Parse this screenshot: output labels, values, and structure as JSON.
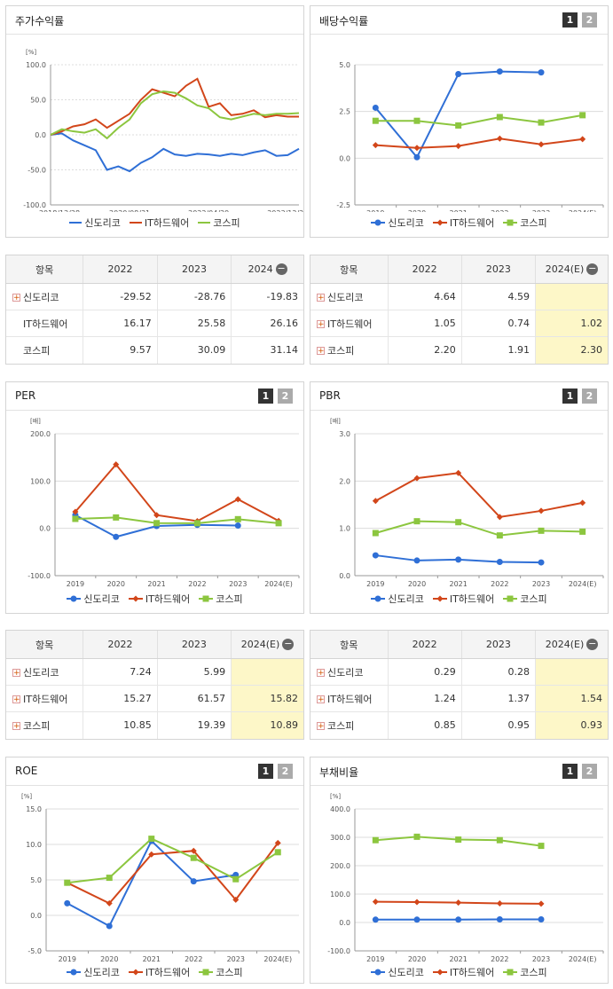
{
  "legend": [
    "신도리코",
    "IT하드웨어",
    "코스피"
  ],
  "colors": {
    "s1": "#2f6fd6",
    "s2": "#d2461a",
    "s3": "#8cc63f"
  },
  "panels": {
    "stock": {
      "title": "주가수익률",
      "unit": "[%]"
    },
    "div": {
      "title": "배당수익률",
      "unit": "",
      "pages": [
        "1",
        "2"
      ]
    },
    "per": {
      "title": "PER",
      "unit": "[배]",
      "pages": [
        "1",
        "2"
      ]
    },
    "pbr": {
      "title": "PBR",
      "unit": "[배]",
      "pages": [
        "1",
        "2"
      ]
    },
    "roe": {
      "title": "ROE",
      "unit": "[%]",
      "pages": [
        "1",
        "2"
      ]
    },
    "debt": {
      "title": "부채비율",
      "unit": "[%]",
      "pages": [
        "1",
        "2"
      ]
    }
  },
  "tables": {
    "stock": {
      "head": [
        "항목",
        "2022",
        "2023",
        "2024"
      ],
      "rows": [
        [
          "신도리코",
          "-29.52",
          "-28.76",
          "-19.83"
        ],
        [
          "IT하드웨어",
          "16.17",
          "25.58",
          "26.16"
        ],
        [
          "코스피",
          "9.57",
          "30.09",
          "31.14"
        ]
      ]
    },
    "div": {
      "head": [
        "항목",
        "2022",
        "2023",
        "2024(E)"
      ],
      "rows": [
        [
          "신도리코",
          "4.64",
          "4.59",
          ""
        ],
        [
          "IT하드웨어",
          "1.05",
          "0.74",
          "1.02"
        ],
        [
          "코스피",
          "2.20",
          "1.91",
          "2.30"
        ]
      ]
    },
    "per": {
      "head": [
        "항목",
        "2022",
        "2023",
        "2024(E)"
      ],
      "rows": [
        [
          "신도리코",
          "7.24",
          "5.99",
          ""
        ],
        [
          "IT하드웨어",
          "15.27",
          "61.57",
          "15.82"
        ],
        [
          "코스피",
          "10.85",
          "19.39",
          "10.89"
        ]
      ]
    },
    "pbr": {
      "head": [
        "항목",
        "2022",
        "2023",
        "2024(E)"
      ],
      "rows": [
        [
          "신도리코",
          "0.29",
          "0.28",
          ""
        ],
        [
          "IT하드웨어",
          "1.24",
          "1.37",
          "1.54"
        ],
        [
          "코스피",
          "0.85",
          "0.95",
          "0.93"
        ]
      ]
    }
  },
  "chart_data": [
    {
      "id": "stock",
      "type": "line",
      "title": "주가수익률",
      "ylabel": "[%]",
      "ylim": [
        -100,
        100
      ],
      "yticks": [
        "100.0",
        "50.0",
        "0.0",
        "-50.0",
        "-100.0"
      ],
      "xticks": [
        "2018/12/28",
        "2020/08/31",
        "2022/04/29",
        "2023/12/28"
      ],
      "x": [
        "2018/12/28",
        "2019/03",
        "2019/06",
        "2019/09",
        "2019/12",
        "2020/03",
        "2020/06",
        "2020/08/31",
        "2020/12",
        "2021/03",
        "2021/06",
        "2021/09",
        "2021/12",
        "2022/02",
        "2022/04/29",
        "2022/07",
        "2022/10",
        "2023/01",
        "2023/04",
        "2023/07",
        "2023/10",
        "2023/12/28",
        "2024/03"
      ],
      "series": [
        {
          "name": "신도리코",
          "values": [
            0,
            2,
            -8,
            -15,
            -22,
            -50,
            -45,
            -52,
            -40,
            -32,
            -20,
            -28,
            -30,
            -27,
            -28,
            -30,
            -27,
            -29,
            -25,
            -22,
            -30,
            -29,
            -20
          ]
        },
        {
          "name": "IT하드웨어",
          "values": [
            0,
            5,
            12,
            15,
            22,
            10,
            20,
            30,
            50,
            65,
            60,
            55,
            70,
            80,
            40,
            45,
            28,
            30,
            35,
            25,
            28,
            26,
            26
          ]
        },
        {
          "name": "코스피",
          "values": [
            0,
            8,
            5,
            3,
            8,
            -5,
            10,
            22,
            45,
            58,
            62,
            60,
            52,
            42,
            38,
            25,
            22,
            26,
            30,
            28,
            30,
            30,
            31
          ]
        }
      ]
    },
    {
      "id": "div",
      "type": "line",
      "title": "배당수익률",
      "ylim": [
        -2.5,
        5
      ],
      "yticks": [
        "5.0",
        "2.5",
        "0.0",
        "-2.5"
      ],
      "categories": [
        "2019",
        "2020",
        "2021",
        "2022",
        "2023",
        "2024(E)"
      ],
      "series": [
        {
          "name": "신도리코",
          "values": [
            2.7,
            0.05,
            4.5,
            4.64,
            4.59,
            null
          ]
        },
        {
          "name": "IT하드웨어",
          "values": [
            0.7,
            0.55,
            0.65,
            1.05,
            0.74,
            1.02
          ]
        },
        {
          "name": "코스피",
          "values": [
            2.0,
            2.0,
            1.75,
            2.2,
            1.91,
            2.3
          ]
        }
      ]
    },
    {
      "id": "per",
      "type": "line",
      "title": "PER",
      "ylabel": "[배]",
      "ylim": [
        -100,
        200
      ],
      "yticks": [
        "200.0",
        "100.0",
        "0.0",
        "-100.0"
      ],
      "categories": [
        "2019",
        "2020",
        "2021",
        "2022",
        "2023",
        "2024(E)"
      ],
      "series": [
        {
          "name": "신도리코",
          "values": [
            28,
            -18,
            5,
            7.24,
            5.99,
            null
          ]
        },
        {
          "name": "IT하드웨어",
          "values": [
            35,
            135,
            28,
            15.27,
            61.57,
            15.82
          ]
        },
        {
          "name": "코스피",
          "values": [
            20,
            23,
            11,
            10.85,
            19.39,
            10.89
          ]
        }
      ]
    },
    {
      "id": "pbr",
      "type": "line",
      "title": "PBR",
      "ylabel": "[배]",
      "ylim": [
        0,
        3
      ],
      "yticks": [
        "3.0",
        "2.0",
        "1.0",
        "0.0"
      ],
      "categories": [
        "2019",
        "2020",
        "2021",
        "2022",
        "2023",
        "2024(E)"
      ],
      "series": [
        {
          "name": "신도리코",
          "values": [
            0.43,
            0.32,
            0.34,
            0.29,
            0.28,
            null
          ]
        },
        {
          "name": "IT하드웨어",
          "values": [
            1.58,
            2.06,
            2.17,
            1.24,
            1.37,
            1.54
          ]
        },
        {
          "name": "코스피",
          "values": [
            0.9,
            1.15,
            1.13,
            0.85,
            0.95,
            0.93
          ]
        }
      ]
    },
    {
      "id": "roe",
      "type": "line",
      "title": "ROE",
      "ylabel": "[%]",
      "ylim": [
        -5,
        15
      ],
      "yticks": [
        "15.0",
        "10.0",
        "5.0",
        "0.0",
        "-5.0"
      ],
      "categories": [
        "2019",
        "2020",
        "2021",
        "2022",
        "2023",
        "2024(E)"
      ],
      "series": [
        {
          "name": "신도리코",
          "values": [
            1.7,
            -1.5,
            10.5,
            4.8,
            5.7,
            null
          ]
        },
        {
          "name": "IT하드웨어",
          "values": [
            4.6,
            1.7,
            8.6,
            9.1,
            2.2,
            10.2
          ]
        },
        {
          "name": "코스피",
          "values": [
            4.6,
            5.3,
            10.8,
            8.1,
            5.1,
            8.9
          ]
        }
      ]
    },
    {
      "id": "debt",
      "type": "line",
      "title": "부채비율",
      "ylabel": "[%]",
      "ylim": [
        -100,
        400
      ],
      "yticks": [
        "400.0",
        "300.0",
        "200.0",
        "100.0",
        "0.0",
        "-100.0"
      ],
      "categories": [
        "2019",
        "2020",
        "2021",
        "2022",
        "2023",
        "2024(E)"
      ],
      "series": [
        {
          "name": "신도리코",
          "values": [
            10,
            10,
            10,
            11,
            11,
            null
          ]
        },
        {
          "name": "IT하드웨어",
          "values": [
            73,
            72,
            70,
            67,
            66,
            null
          ]
        },
        {
          "name": "코스피",
          "values": [
            290,
            302,
            292,
            290,
            270,
            null
          ]
        }
      ]
    }
  ]
}
